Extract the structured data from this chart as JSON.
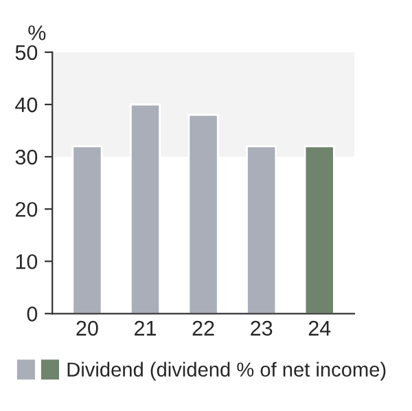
{
  "chart_data": {
    "type": "bar",
    "ylabel": "%",
    "categories": [
      "20",
      "21",
      "22",
      "23",
      "24"
    ],
    "series": [
      {
        "name": "Dividend (dividend % of net income)",
        "colors": [
          "#a9aeb9",
          "#a9aeb9",
          "#a9aeb9",
          "#a9aeb9",
          "#6f846c"
        ],
        "values": [
          32,
          40,
          38,
          32,
          32
        ]
      }
    ],
    "ylim": [
      0,
      50
    ],
    "yticks": [
      0,
      10,
      20,
      30,
      40,
      50
    ],
    "bands": [
      {
        "axis": "y",
        "from": 30,
        "to": 50,
        "color": "#f3f3f3"
      }
    ],
    "grid": false,
    "legend": "bottom"
  }
}
